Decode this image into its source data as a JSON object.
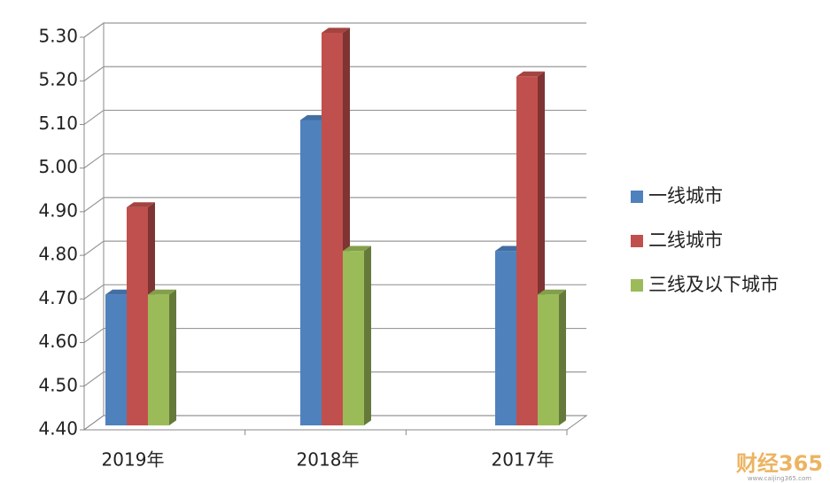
{
  "chart_data": {
    "type": "bar3d",
    "categories": [
      "2019年",
      "2018年",
      "2017年"
    ],
    "series": [
      {
        "name": "一线城市",
        "color": "#4f81bd",
        "values": [
          4.7,
          5.1,
          4.8
        ]
      },
      {
        "name": "二线城市",
        "color": "#c0504d",
        "values": [
          4.9,
          5.3,
          5.2
        ]
      },
      {
        "name": "三线及以下城市",
        "color": "#9bbb59",
        "values": [
          4.7,
          4.8,
          4.7
        ]
      }
    ],
    "ylim": [
      4.4,
      5.3
    ],
    "yticks": [
      {
        "value": 4.4,
        "label": "4.40"
      },
      {
        "value": 4.5,
        "label": "4.50"
      },
      {
        "value": 4.6,
        "label": "4.60"
      },
      {
        "value": 4.7,
        "label": "4.70"
      },
      {
        "value": 4.8,
        "label": "4.80"
      },
      {
        "value": 4.9,
        "label": "4.90"
      },
      {
        "value": 5,
        "label": "5.00"
      },
      {
        "value": 5.1,
        "label": "5.10"
      },
      {
        "value": 5.2,
        "label": "5.20"
      },
      {
        "value": 5.3,
        "label": "5.30"
      }
    ],
    "grid": true,
    "legend": "right",
    "watermark": "财经365",
    "watermark_url": "www.caijing365.com"
  }
}
